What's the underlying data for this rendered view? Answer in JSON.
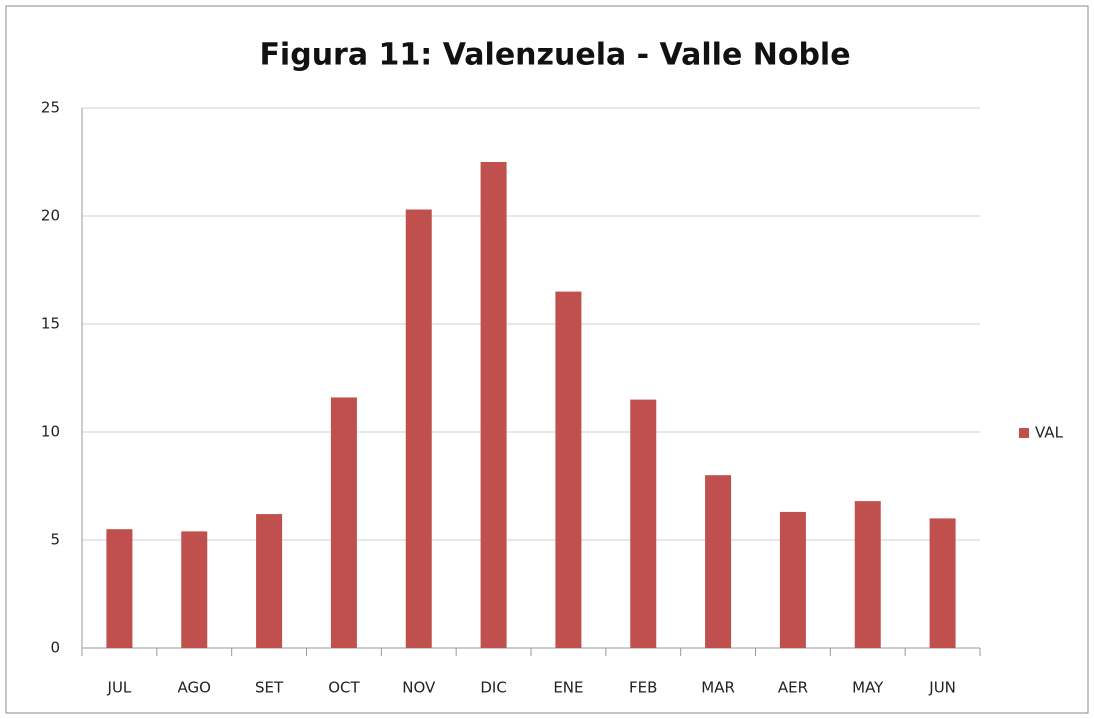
{
  "chart_data": {
    "type": "bar",
    "title": "Figura 11: Valenzuela - Valle Noble",
    "categories": [
      "JUL",
      "AGO",
      "SET",
      "OCT",
      "NOV",
      "DIC",
      "ENE",
      "FEB",
      "MAR",
      "AER",
      "MAY",
      "JUN"
    ],
    "series": [
      {
        "name": "VAL",
        "color": "#c0504d",
        "values": [
          5.5,
          5.4,
          6.2,
          11.6,
          20.3,
          22.5,
          16.5,
          11.5,
          8.0,
          6.3,
          6.8,
          6.0
        ]
      }
    ],
    "ylim": [
      0,
      25
    ],
    "yticks": [
      0,
      5,
      10,
      15,
      20,
      25
    ],
    "grid": true,
    "legend": "right"
  }
}
